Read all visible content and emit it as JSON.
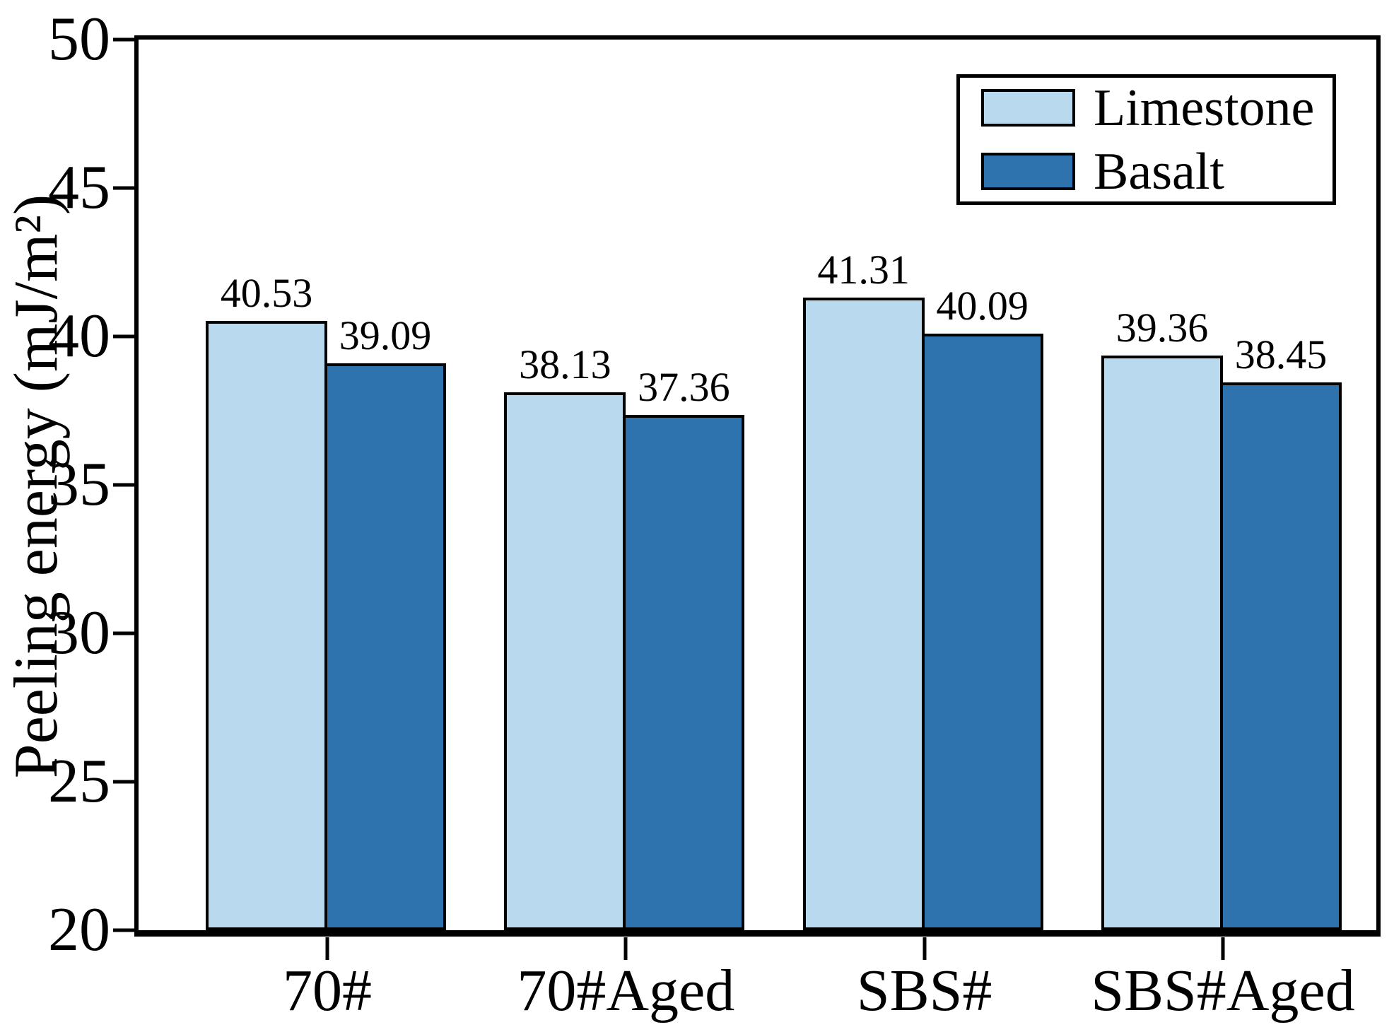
{
  "chart_data": {
    "type": "bar",
    "title": "",
    "xlabel": "",
    "ylabel": "Peeling energy (mJ/m²)",
    "ylim": [
      20,
      50
    ],
    "yticks": [
      20,
      25,
      30,
      35,
      40,
      45,
      50
    ],
    "categories": [
      "70#",
      "70#Aged",
      "SBS#",
      "SBS#Aged"
    ],
    "series": [
      {
        "name": "Limestone",
        "color": "#B9D9EE",
        "values": [
          40.53,
          38.13,
          41.31,
          39.36
        ]
      },
      {
        "name": "Basalt",
        "color": "#2E73AD",
        "values": [
          39.09,
          37.36,
          40.09,
          38.45
        ]
      }
    ],
    "value_labels": true,
    "value_label_decimals": 2,
    "grid": false,
    "legend_position": "top-right",
    "bar_border_color": "#000000",
    "axis_color": "#000000",
    "background_color": "#FFFFFF"
  }
}
